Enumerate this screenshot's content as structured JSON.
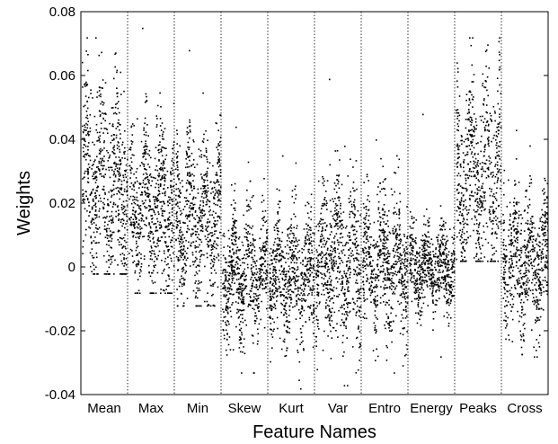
{
  "chart_data": {
    "type": "scatter",
    "title": "",
    "xlabel": "Feature Names",
    "ylabel": "Weights",
    "ylim": [
      -0.04,
      0.08
    ],
    "yticks": [
      {
        "value": -0.04,
        "label": "-0.04"
      },
      {
        "value": -0.02,
        "label": "-0.02"
      },
      {
        "value": 0,
        "label": "0"
      },
      {
        "value": 0.02,
        "label": "0.02"
      },
      {
        "value": 0.04,
        "label": "0.04"
      },
      {
        "value": 0.06,
        "label": "0.06"
      },
      {
        "value": 0.08,
        "label": "0.08"
      }
    ],
    "grid": false,
    "separators": "dotted vertical lines between feature groups",
    "marker_color": "#000000",
    "categories": [
      "Mean",
      "Max",
      "Min",
      "Skew",
      "Kurt",
      "Var",
      "Entro",
      "Energy",
      "Peaks",
      "Cross"
    ],
    "groups": [
      {
        "name": "Mean",
        "min": -0.002,
        "max": 0.072,
        "center": 0.026,
        "spread": 0.014
      },
      {
        "name": "Max",
        "min": -0.008,
        "max": 0.075,
        "center": 0.018,
        "spread": 0.012
      },
      {
        "name": "Min",
        "min": -0.012,
        "max": 0.068,
        "center": 0.015,
        "spread": 0.012
      },
      {
        "name": "Skew",
        "min": -0.033,
        "max": 0.044,
        "center": -0.002,
        "spread": 0.009
      },
      {
        "name": "Kurt",
        "min": -0.038,
        "max": 0.035,
        "center": -0.003,
        "spread": 0.009
      },
      {
        "name": "Var",
        "min": -0.037,
        "max": 0.059,
        "center": 0.002,
        "spread": 0.012
      },
      {
        "name": "Entro",
        "min": -0.033,
        "max": 0.04,
        "center": 0.001,
        "spread": 0.01
      },
      {
        "name": "Energy",
        "min": -0.028,
        "max": 0.048,
        "center": 0.0,
        "spread": 0.006
      },
      {
        "name": "Peaks",
        "min": 0.002,
        "max": 0.072,
        "center": 0.028,
        "spread": 0.014
      },
      {
        "name": "Cross",
        "min": -0.028,
        "max": 0.043,
        "center": 0.002,
        "spread": 0.01
      }
    ]
  }
}
